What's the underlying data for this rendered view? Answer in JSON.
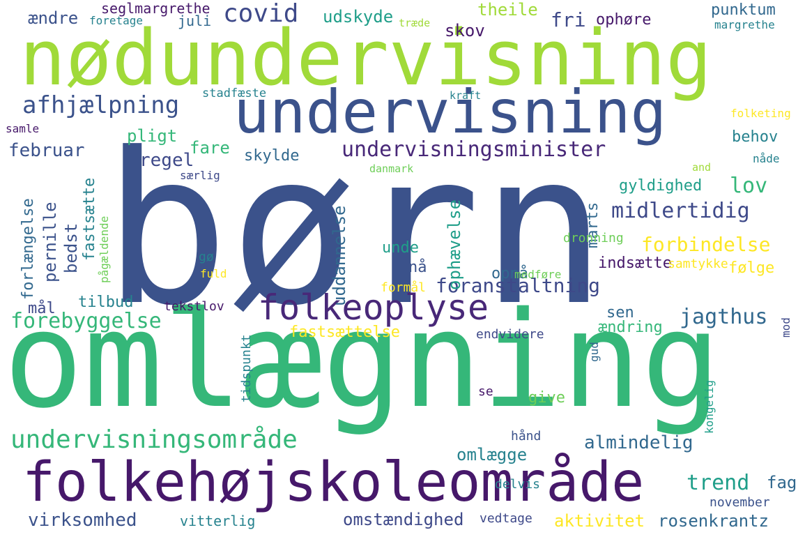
{
  "palette": {
    "dark_purple": "#46186a",
    "purple": "#482878",
    "indigo": "#3e4989",
    "blue": "#31688e",
    "steel_blue": "#3b528b",
    "teal": "#26828e",
    "teal_green": "#1f9e89",
    "green": "#35b779",
    "light_green": "#6ece58",
    "yellow_green": "#a0da39",
    "yellow": "#fde725",
    "background": "#ffffff"
  },
  "words": [
    {
      "text": "børn",
      "color": "#3b528b"
    },
    {
      "text": "omlægning",
      "color": "#35b779"
    },
    {
      "text": "nødundervisning",
      "color": "#a0da39"
    },
    {
      "text": "undervisning",
      "color": "#3b528b"
    },
    {
      "text": "folkehøjskoleområde",
      "color": "#46186a"
    },
    {
      "text": "folkeoplyse",
      "color": "#482878"
    },
    {
      "text": "undervisningsområde",
      "color": "#35b779"
    },
    {
      "text": "undervisningsminister",
      "color": "#482878"
    },
    {
      "text": "afhjælpning",
      "color": "#3b528b"
    },
    {
      "text": "covid",
      "color": "#3e4989"
    },
    {
      "text": "foranstaltning",
      "color": "#3e4989"
    },
    {
      "text": "midlertidig",
      "color": "#3e4989"
    },
    {
      "text": "forebyggelse",
      "color": "#35b779"
    },
    {
      "text": "jagthus",
      "color": "#31688e"
    },
    {
      "text": "forbindelse",
      "color": "#fde725"
    },
    {
      "text": "trend",
      "color": "#1f9e89"
    },
    {
      "text": "lov",
      "color": "#35b779"
    },
    {
      "text": "rosenkrantz",
      "color": "#31688e"
    },
    {
      "text": "virksomhed",
      "color": "#3b528b"
    },
    {
      "text": "omstændighed",
      "color": "#3e4989"
    },
    {
      "text": "almindelig",
      "color": "#31688e"
    },
    {
      "text": "aktivitet",
      "color": "#fde725"
    },
    {
      "text": "februar",
      "color": "#3b528b"
    },
    {
      "text": "fastsættelse",
      "color": "#fde725"
    },
    {
      "text": "skov",
      "color": "#46186a"
    },
    {
      "text": "fri",
      "color": "#3e4989"
    },
    {
      "text": "ophøre",
      "color": "#46186a"
    },
    {
      "text": "punktum",
      "color": "#31688e"
    },
    {
      "text": "theile",
      "color": "#a0da39"
    },
    {
      "text": "ændre",
      "color": "#3b528b"
    },
    {
      "text": "udskyde",
      "color": "#1f9e89"
    },
    {
      "text": "seglmargrethe",
      "color": "#46186a"
    },
    {
      "text": "juli",
      "color": "#31688e"
    },
    {
      "text": "foretage",
      "color": "#26828e"
    },
    {
      "text": "træde",
      "color": "#a0da39"
    },
    {
      "text": "margrethe",
      "color": "#26828e"
    },
    {
      "text": "pligt",
      "color": "#35b779"
    },
    {
      "text": "fare",
      "color": "#35b779"
    },
    {
      "text": "regel",
      "color": "#3e4989"
    },
    {
      "text": "skylde",
      "color": "#31688e"
    },
    {
      "text": "behov",
      "color": "#26828e"
    },
    {
      "text": "gyldighed",
      "color": "#1f9e89"
    },
    {
      "text": "marts",
      "color": "#31688e"
    },
    {
      "text": "uddannelse",
      "color": "#31688e"
    },
    {
      "text": "ophævelse",
      "color": "#1f9e89"
    },
    {
      "text": "unde",
      "color": "#1f9e89"
    },
    {
      "text": "nå",
      "color": "#3b528b"
    },
    {
      "text": "opnå",
      "color": "#31688e"
    },
    {
      "text": "indsætte",
      "color": "#46186a"
    },
    {
      "text": "følge",
      "color": "#fde725"
    },
    {
      "text": "sen",
      "color": "#31688e"
    },
    {
      "text": "ændring",
      "color": "#35b779"
    },
    {
      "text": "tilbud",
      "color": "#26828e"
    },
    {
      "text": "mål",
      "color": "#3e4989"
    },
    {
      "text": "tekstlov",
      "color": "#46186a"
    },
    {
      "text": "pernille",
      "color": "#3b528b"
    },
    {
      "text": "bedst",
      "color": "#3b528b"
    },
    {
      "text": "fastsætte",
      "color": "#26828e"
    },
    {
      "text": "forlængelse",
      "color": "#31688e"
    },
    {
      "text": "pågældende",
      "color": "#6ece58"
    },
    {
      "text": "samle",
      "color": "#46186a"
    },
    {
      "text": "stadfæste",
      "color": "#26828e"
    },
    {
      "text": "kraft",
      "color": "#26828e"
    },
    {
      "text": "særlig",
      "color": "#3e4989"
    },
    {
      "text": "danmark",
      "color": "#6ece58"
    },
    {
      "text": "and",
      "color": "#a0da39"
    },
    {
      "text": "nåde",
      "color": "#26828e"
    },
    {
      "text": "folketing",
      "color": "#fde725"
    },
    {
      "text": "dronning",
      "color": "#6ece58"
    },
    {
      "text": "samtykke",
      "color": "#fde725"
    },
    {
      "text": "medføre",
      "color": "#6ece58"
    },
    {
      "text": "gø",
      "color": "#26828e"
    },
    {
      "text": "fuld",
      "color": "#fde725"
    },
    {
      "text": "formål",
      "color": "#fde725"
    },
    {
      "text": "endvidere",
      "color": "#3e4989"
    },
    {
      "text": "tidspunkt",
      "color": "#26828e"
    },
    {
      "text": "gud",
      "color": "#31688e"
    },
    {
      "text": "mod",
      "color": "#3e4989"
    },
    {
      "text": "kongelig",
      "color": "#1f9e89"
    },
    {
      "text": "se",
      "color": "#46186a"
    },
    {
      "text": "give",
      "color": "#6ece58"
    },
    {
      "text": "omlægge",
      "color": "#26828e"
    },
    {
      "text": "hånd",
      "color": "#3b528b"
    },
    {
      "text": "delvis",
      "color": "#26828e"
    },
    {
      "text": "fag",
      "color": "#31688e"
    },
    {
      "text": "november",
      "color": "#3b528b"
    },
    {
      "text": "vitterlig",
      "color": "#26828e"
    },
    {
      "text": "vedtage",
      "color": "#3e4989"
    }
  ]
}
